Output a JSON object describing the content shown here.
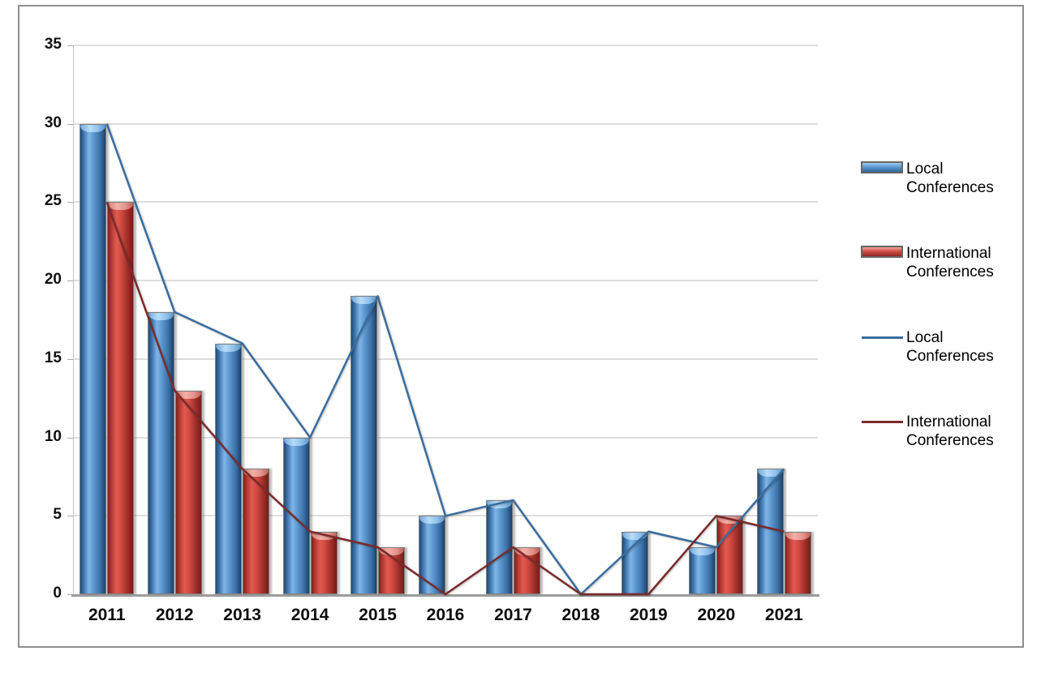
{
  "chart_data": {
    "type": "bar",
    "subtype": "combo-bar-line",
    "title": "",
    "categories": [
      "2011",
      "2012",
      "2013",
      "2014",
      "2015",
      "2016",
      "2017",
      "2018",
      "2019",
      "2020",
      "2021"
    ],
    "series": [
      {
        "id": "local-bar",
        "name": "Local Conferences",
        "render": "bar",
        "values": [
          30,
          18,
          16,
          10,
          19,
          5,
          6,
          0,
          4,
          3,
          8
        ],
        "color": "#4E86C4"
      },
      {
        "id": "international-bar",
        "name": "International Conferences",
        "render": "bar",
        "values": [
          25,
          13,
          8,
          4,
          3,
          0,
          3,
          0,
          0,
          5,
          4
        ],
        "color": "#D04A42"
      },
      {
        "id": "local-line",
        "name": "Local Conferences",
        "render": "line",
        "values": [
          30,
          18,
          16,
          10,
          19,
          5,
          6,
          0,
          4,
          3,
          8
        ],
        "color": "#3A6D9E"
      },
      {
        "id": "international-line",
        "name": "International Conferences",
        "render": "line",
        "values": [
          25,
          13,
          8,
          4,
          3,
          0,
          3,
          0,
          0,
          5,
          4
        ],
        "color": "#7A2B2B"
      }
    ],
    "xlabel": "",
    "ylabel": "",
    "ylim": [
      0,
      35
    ],
    "yticks": [
      0,
      5,
      10,
      15,
      20,
      25,
      30,
      35
    ],
    "grid": true,
    "legend_position": "right-middle",
    "legend": [
      {
        "swatch": "bar-blue",
        "lines": [
          "Local",
          "Conferences"
        ]
      },
      {
        "swatch": "bar-red",
        "lines": [
          "International",
          "Conferences"
        ]
      },
      {
        "swatch": "line-blue",
        "lines": [
          "Local",
          "Conferences"
        ]
      },
      {
        "swatch": "line-red",
        "lines": [
          "International",
          "Conferences"
        ]
      }
    ],
    "colors": {
      "bar_blue": "#4E86C4",
      "bar_red": "#D04A42",
      "line_blue": "#3A6D9E",
      "line_red": "#7A2B2B",
      "gridline": "#DEDEDE",
      "axis": "#9C9C9C",
      "label_text": "#111111",
      "figure_border": "#8E8E8E",
      "background": "#FFFFFF"
    }
  }
}
